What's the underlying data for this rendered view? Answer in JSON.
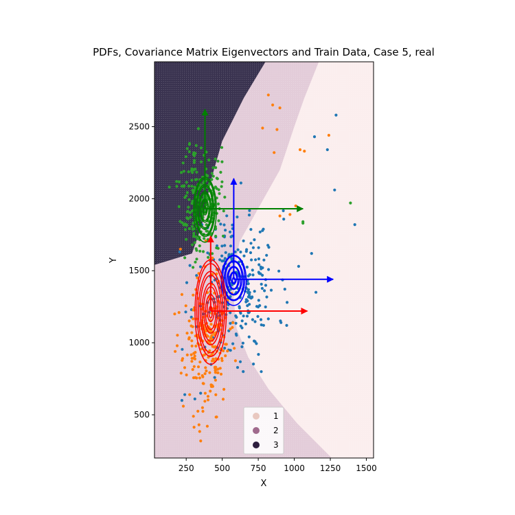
{
  "chart_data": {
    "type": "scatter",
    "title": "PDFs, Covariance Matrix Eigenvectors and Train Data, Case 5, real",
    "xlabel": "X",
    "ylabel": "Y",
    "xlim": [
      30,
      1550
    ],
    "ylim": [
      200,
      2950
    ],
    "xticks": [
      250,
      500,
      750,
      1000,
      1250,
      1500
    ],
    "yticks": [
      500,
      1000,
      1500,
      2000,
      2500
    ],
    "legend": {
      "placement": "lower-center",
      "entries": [
        {
          "label": "1",
          "color": "#e9c8c0"
        },
        {
          "label": "2",
          "color": "#a06a8d"
        },
        {
          "label": "3",
          "color": "#2d1e3e"
        }
      ]
    },
    "decision_regions": [
      {
        "class": "1",
        "color": "#fbeeee",
        "polygon": [
          [
            30,
            2950
          ],
          [
            1550,
            2950
          ],
          [
            1550,
            200
          ],
          [
            30,
            200
          ]
        ]
      },
      {
        "class": "2",
        "color": "#e3ccd9",
        "polygon": [
          [
            30,
            200
          ],
          [
            1260,
            200
          ],
          [
            1020,
            440
          ],
          [
            820,
            680
          ],
          [
            680,
            900
          ],
          [
            600,
            1100
          ],
          [
            580,
            1300
          ],
          [
            585,
            1500
          ],
          [
            620,
            1700
          ],
          [
            760,
            1950
          ],
          [
            900,
            2200
          ],
          [
            1000,
            2500
          ],
          [
            1070,
            2700
          ],
          [
            1170,
            2950
          ],
          [
            30,
            2950
          ]
        ]
      },
      {
        "class": "3",
        "color": "#3a3350",
        "polygon": [
          [
            30,
            2950
          ],
          [
            800,
            2950
          ],
          [
            650,
            2700
          ],
          [
            500,
            2400
          ],
          [
            420,
            2120
          ],
          [
            360,
            1820
          ],
          [
            290,
            1620
          ],
          [
            30,
            1540
          ]
        ]
      }
    ],
    "pdf_contours": [
      {
        "color": "#0000ff",
        "center": [
          580,
          1440
        ],
        "sx": 60,
        "sy": 120
      },
      {
        "color": "#ff0000",
        "center": [
          420,
          1220
        ],
        "sx": 75,
        "sy": 250
      },
      {
        "color": "#008000",
        "center": [
          380,
          1930
        ],
        "sx": 55,
        "sy": 155
      }
    ],
    "eigenvectors": [
      {
        "color": "#008000",
        "origin": [
          380,
          1930
        ],
        "tips": [
          [
            380,
            2620
          ],
          [
            1060,
            1930
          ]
        ]
      },
      {
        "color": "#0000ff",
        "origin": [
          580,
          1440
        ],
        "tips": [
          [
            580,
            2140
          ],
          [
            1270,
            1440
          ]
        ]
      },
      {
        "color": "#ff0000",
        "origin": [
          420,
          1220
        ],
        "tips": [
          [
            420,
            1740
          ],
          [
            1090,
            1220
          ]
        ]
      }
    ],
    "series": [
      {
        "name": "",
        "color": "#1f77b4",
        "center": [
          600,
          1400
        ],
        "sx": 140,
        "sy": 260,
        "count": 260,
        "seed": 11,
        "extra": [
          [
            1290,
            2580
          ],
          [
            1140,
            2430
          ],
          [
            1230,
            2340
          ],
          [
            1280,
            2060
          ],
          [
            1420,
            1820
          ],
          [
            1120,
            1620
          ],
          [
            1150,
            1350
          ],
          [
            950,
            1280
          ],
          [
            220,
            600
          ],
          [
            240,
            640
          ],
          [
            310,
            610
          ],
          [
            350,
            650
          ],
          [
            780,
            1520
          ],
          [
            1030,
            1530
          ]
        ]
      },
      {
        "name": "",
        "color": "#ff7f0e",
        "center": [
          390,
          1000
        ],
        "sx": 80,
        "sy": 230,
        "count": 230,
        "seed": 23,
        "extra": [
          [
            820,
            2720
          ],
          [
            850,
            2650
          ],
          [
            900,
            2630
          ],
          [
            780,
            2490
          ],
          [
            880,
            2480
          ],
          [
            860,
            2320
          ],
          [
            1040,
            2340
          ],
          [
            1070,
            2330
          ],
          [
            1240,
            2440
          ],
          [
            1010,
            1950
          ],
          [
            970,
            1890
          ],
          [
            900,
            1880
          ],
          [
            200,
            1210
          ],
          [
            170,
            1200
          ],
          [
            210,
            1650
          ],
          [
            300,
            490
          ],
          [
            230,
            560
          ]
        ]
      },
      {
        "name": "",
        "color": "#2ca02c",
        "center": [
          350,
          2000
        ],
        "sx": 70,
        "sy": 200,
        "count": 230,
        "seed": 37,
        "extra": [
          [
            1390,
            1970
          ],
          [
            1060,
            1830
          ],
          [
            1060,
            1840
          ],
          [
            240,
            1590
          ]
        ]
      }
    ]
  }
}
